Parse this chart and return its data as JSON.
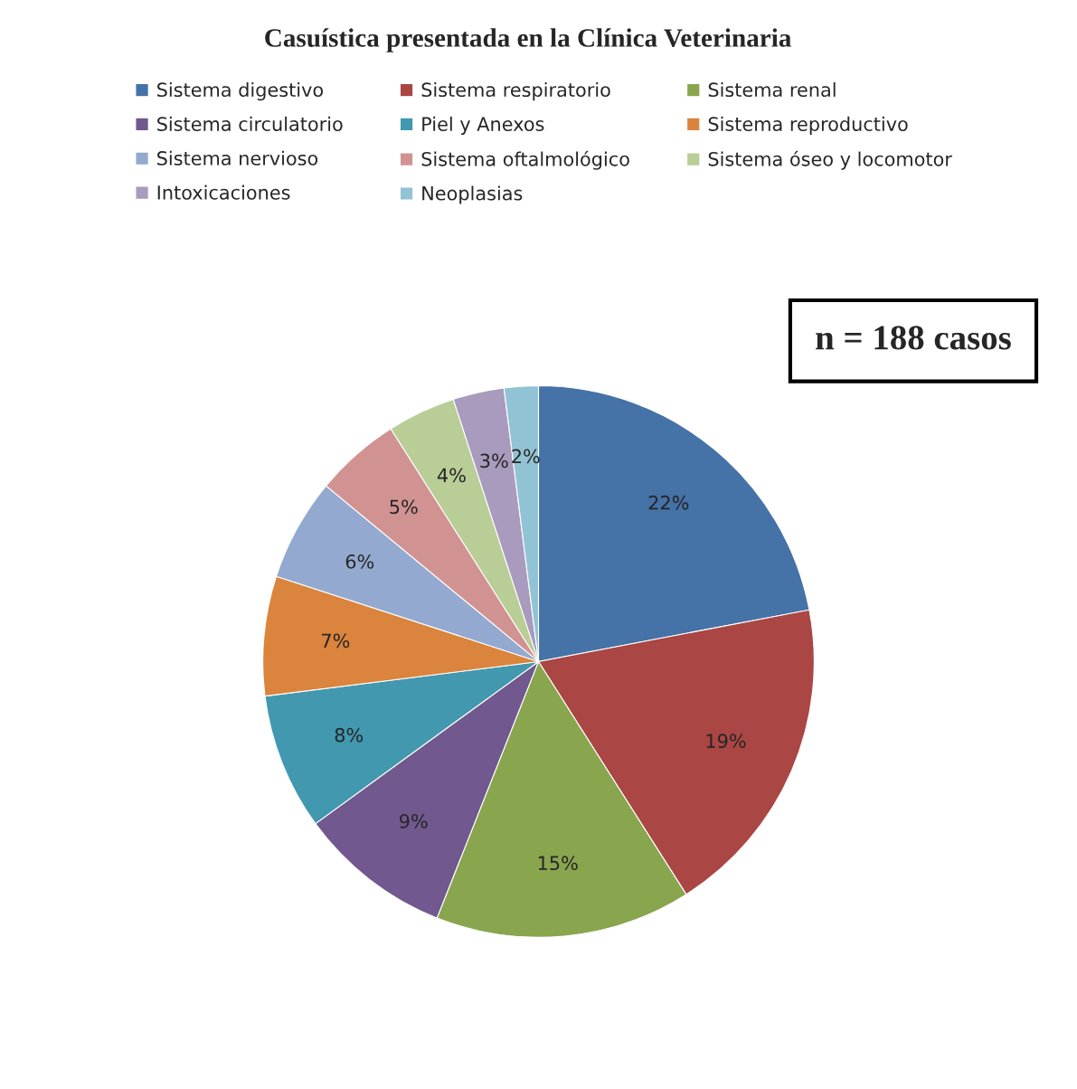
{
  "chart_data": {
    "type": "pie",
    "title": "Casuística presentada en la Clínica Veterinaria",
    "categories": [
      "Sistema digestivo",
      "Sistema respiratorio",
      "Sistema renal",
      "Sistema circulatorio",
      "Piel y Anexos",
      "Sistema reproductivo",
      "Sistema nervioso",
      "Sistema oftalmológico",
      "Sistema óseo y locomotor",
      "Intoxicaciones",
      "Neoplasias"
    ],
    "values": [
      22,
      19,
      15,
      9,
      8,
      7,
      6,
      5,
      4,
      3,
      2
    ],
    "value_labels": [
      "22%",
      "19%",
      "15%",
      "9%",
      "8%",
      "7%",
      "6%",
      "5%",
      "4%",
      "3%",
      "2%"
    ],
    "colors": [
      "#4572a7",
      "#aa4643",
      "#89a54e",
      "#71588f",
      "#4198af",
      "#db843d",
      "#93a9cf",
      "#d19392",
      "#b9cd96",
      "#a99bbd",
      "#92c3d4"
    ],
    "legend": "top",
    "annotations": [
      "n = 188 casos"
    ]
  }
}
